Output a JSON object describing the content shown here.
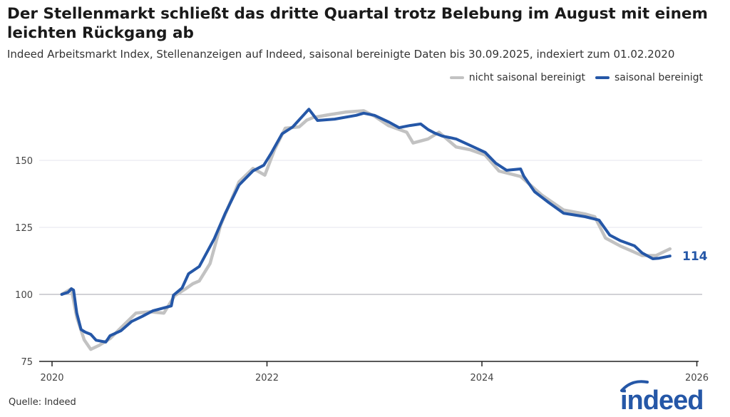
{
  "title": "Der Stellenmarkt schließt das dritte Quartal trotz Belebung im August mit einem leichten Rückgang ab",
  "subtitle": "Indeed Arbeitsmarkt Index, Stellenanzeigen auf Indeed, saisonal bereinigte Daten bis 30.09.2025, indexiert zum 01.02.2020",
  "source": "Quelle: Indeed",
  "logo_text": "indeed",
  "chart_data": {
    "type": "line",
    "title": "",
    "xlabel": "",
    "ylabel": "",
    "xlim": [
      2019.9,
      2026
    ],
    "ylim": [
      75,
      170
    ],
    "x_ticks": [
      2020,
      2022,
      2024,
      2026
    ],
    "y_ticks": [
      75,
      100,
      125,
      150
    ],
    "grid": true,
    "legend_position": "top-right",
    "end_label": "114",
    "series": [
      {
        "name": "nicht saisonal bereinigt",
        "color": "#c2c2c2",
        "x": [
          2020.09,
          2020.18,
          2020.23,
          2020.3,
          2020.36,
          2020.44,
          2020.54,
          2020.64,
          2020.78,
          2020.91,
          2021.04,
          2021.14,
          2021.24,
          2021.31,
          2021.37,
          2021.47,
          2021.57,
          2021.74,
          2021.87,
          2021.98,
          2022.07,
          2022.17,
          2022.3,
          2022.37,
          2022.43,
          2022.57,
          2022.73,
          2022.9,
          2023.0,
          2023.13,
          2023.3,
          2023.36,
          2023.5,
          2023.6,
          2023.76,
          2023.89,
          2024.03,
          2024.16,
          2024.36,
          2024.56,
          2024.76,
          2024.96,
          2025.05,
          2025.15,
          2025.29,
          2025.49,
          2025.62,
          2025.75
        ],
        "y": [
          100,
          102.1,
          91.5,
          83,
          79.5,
          81,
          83.5,
          87.5,
          93,
          93.5,
          93,
          99.5,
          102,
          104,
          105,
          111.5,
          126,
          142,
          147,
          144.5,
          154,
          162,
          162.5,
          165,
          166,
          167,
          168,
          168.5,
          166.5,
          163,
          160.5,
          156.5,
          158,
          160.5,
          155,
          154,
          152,
          146,
          144,
          137,
          131.5,
          130,
          129,
          121,
          118,
          114.5,
          114.5,
          117
        ]
      },
      {
        "name": "saisonal bereinigt",
        "color": "#2557a7",
        "x": [
          2020.09,
          2020.15,
          2020.18,
          2020.2,
          2020.23,
          2020.27,
          2020.31,
          2020.36,
          2020.41,
          2020.5,
          2020.54,
          2020.64,
          2020.74,
          2020.84,
          2020.94,
          2021.11,
          2021.13,
          2021.21,
          2021.27,
          2021.37,
          2021.51,
          2021.61,
          2021.74,
          2021.87,
          2021.97,
          2022.04,
          2022.14,
          2022.24,
          2022.39,
          2022.47,
          2022.63,
          2022.83,
          2022.9,
          2023.0,
          2023.13,
          2023.23,
          2023.33,
          2023.43,
          2023.5,
          2023.56,
          2023.63,
          2023.76,
          2023.89,
          2024.03,
          2024.13,
          2024.23,
          2024.36,
          2024.39,
          2024.49,
          2024.62,
          2024.76,
          2024.96,
          2025.09,
          2025.19,
          2025.29,
          2025.42,
          2025.49,
          2025.59,
          2025.65,
          2025.75
        ],
        "y": [
          100,
          100.8,
          102.1,
          101.6,
          93,
          86.9,
          85.9,
          85.1,
          82.9,
          82.2,
          84.6,
          86.4,
          89.9,
          91.8,
          93.9,
          95.7,
          99.7,
          102.4,
          107.7,
          110.4,
          120.8,
          130.1,
          140.8,
          146.1,
          148.2,
          152.7,
          159.9,
          162.5,
          169.1,
          164.9,
          165.4,
          166.8,
          167.6,
          166.8,
          164.4,
          162.2,
          163,
          163.6,
          161.5,
          160.2,
          159.1,
          158,
          155.6,
          153,
          148.9,
          146.3,
          146.8,
          144.1,
          138.3,
          134.3,
          130.3,
          129,
          127.7,
          122.1,
          120,
          118.1,
          115.5,
          113.3,
          113.5,
          114.3
        ]
      }
    ]
  }
}
